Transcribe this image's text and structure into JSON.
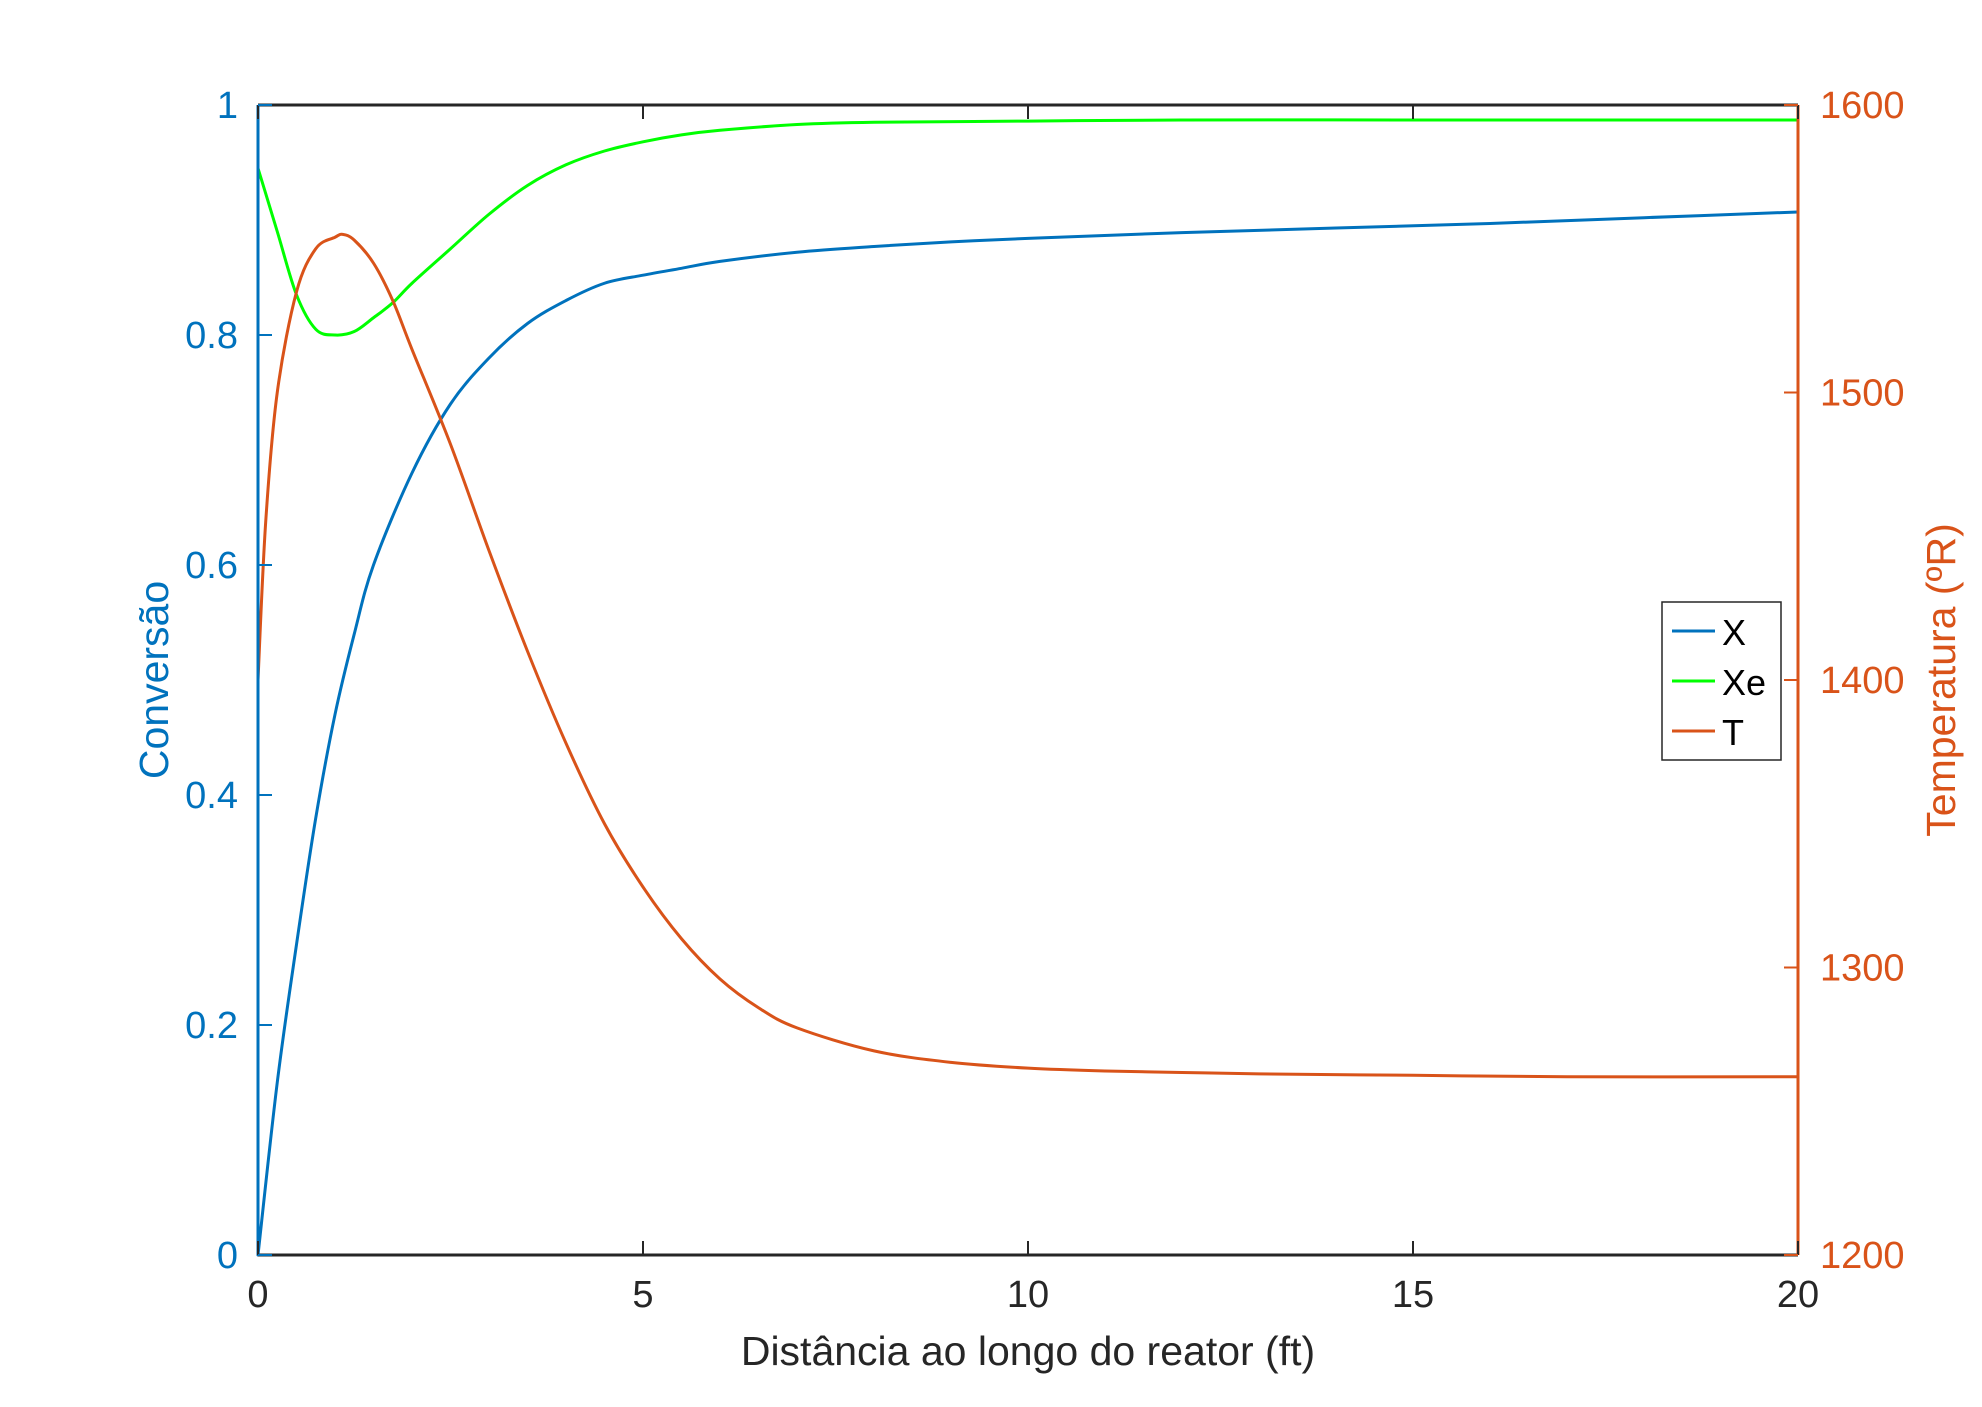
{
  "chart_data": {
    "type": "line",
    "title": "",
    "xlabel": "Distância ao longo do reator (ft)",
    "ylabel_left": "Conversão",
    "ylabel_right": "Temperatura (ºR)",
    "xlim": [
      0,
      20
    ],
    "ylim_left": [
      0,
      1
    ],
    "ylim_right": [
      1200,
      1600
    ],
    "x_ticks": [
      "0",
      "5",
      "10",
      "15",
      "20"
    ],
    "y_left_ticks": [
      "0",
      "0.2",
      "0.4",
      "0.6",
      "0.8",
      "1"
    ],
    "y_right_ticks": [
      "1200",
      "1300",
      "1400",
      "1500",
      "1600"
    ],
    "grid": false,
    "legend_position": "right",
    "colors": {
      "X": "#0072BD",
      "Xe": "#00FF00",
      "T": "#D95319",
      "axis": "#262626"
    },
    "series": [
      {
        "name": "X",
        "axis": "left",
        "x": [
          0,
          0.25,
          0.5,
          0.75,
          1.0,
          1.25,
          1.5,
          2.0,
          2.5,
          3.0,
          3.5,
          4.0,
          4.5,
          5.0,
          5.5,
          6.0,
          7.0,
          8.0,
          9.0,
          10.0,
          12.0,
          14.0,
          16.0,
          18.0,
          20.0
        ],
        "y": [
          0.0,
          0.15,
          0.27,
          0.38,
          0.47,
          0.54,
          0.6,
          0.68,
          0.74,
          0.78,
          0.81,
          0.83,
          0.845,
          0.852,
          0.858,
          0.864,
          0.872,
          0.877,
          0.881,
          0.884,
          0.889,
          0.893,
          0.897,
          0.902,
          0.907
        ]
      },
      {
        "name": "Xe",
        "axis": "left",
        "x": [
          0,
          0.25,
          0.5,
          0.75,
          1.0,
          1.25,
          1.5,
          1.75,
          2.0,
          2.5,
          3.0,
          3.5,
          4.0,
          4.5,
          5.0,
          5.5,
          6.0,
          7.0,
          8.0,
          10.0,
          12.0,
          15.0,
          18.0,
          20.0
        ],
        "y": [
          0.945,
          0.89,
          0.835,
          0.805,
          0.8,
          0.803,
          0.815,
          0.828,
          0.845,
          0.875,
          0.905,
          0.93,
          0.948,
          0.96,
          0.968,
          0.974,
          0.978,
          0.983,
          0.985,
          0.986,
          0.987,
          0.987,
          0.987,
          0.987
        ]
      },
      {
        "name": "T",
        "axis": "right",
        "x": [
          0,
          0.1,
          0.25,
          0.5,
          0.75,
          1.0,
          1.1,
          1.25,
          1.5,
          1.75,
          2.0,
          2.5,
          3.0,
          3.5,
          4.0,
          4.5,
          5.0,
          5.5,
          6.0,
          6.5,
          7.0,
          8.0,
          9.0,
          10.0,
          11.0,
          12.0,
          13.0,
          15.0,
          17.0,
          20.0
        ],
        "y": [
          1400,
          1455,
          1500,
          1535,
          1550,
          1554,
          1555,
          1553,
          1545,
          1532,
          1515,
          1482,
          1445,
          1410,
          1378,
          1350,
          1328,
          1310,
          1296,
          1286,
          1279,
          1271,
          1267,
          1265,
          1264,
          1263.5,
          1263,
          1262.5,
          1262,
          1262
        ]
      }
    ]
  }
}
